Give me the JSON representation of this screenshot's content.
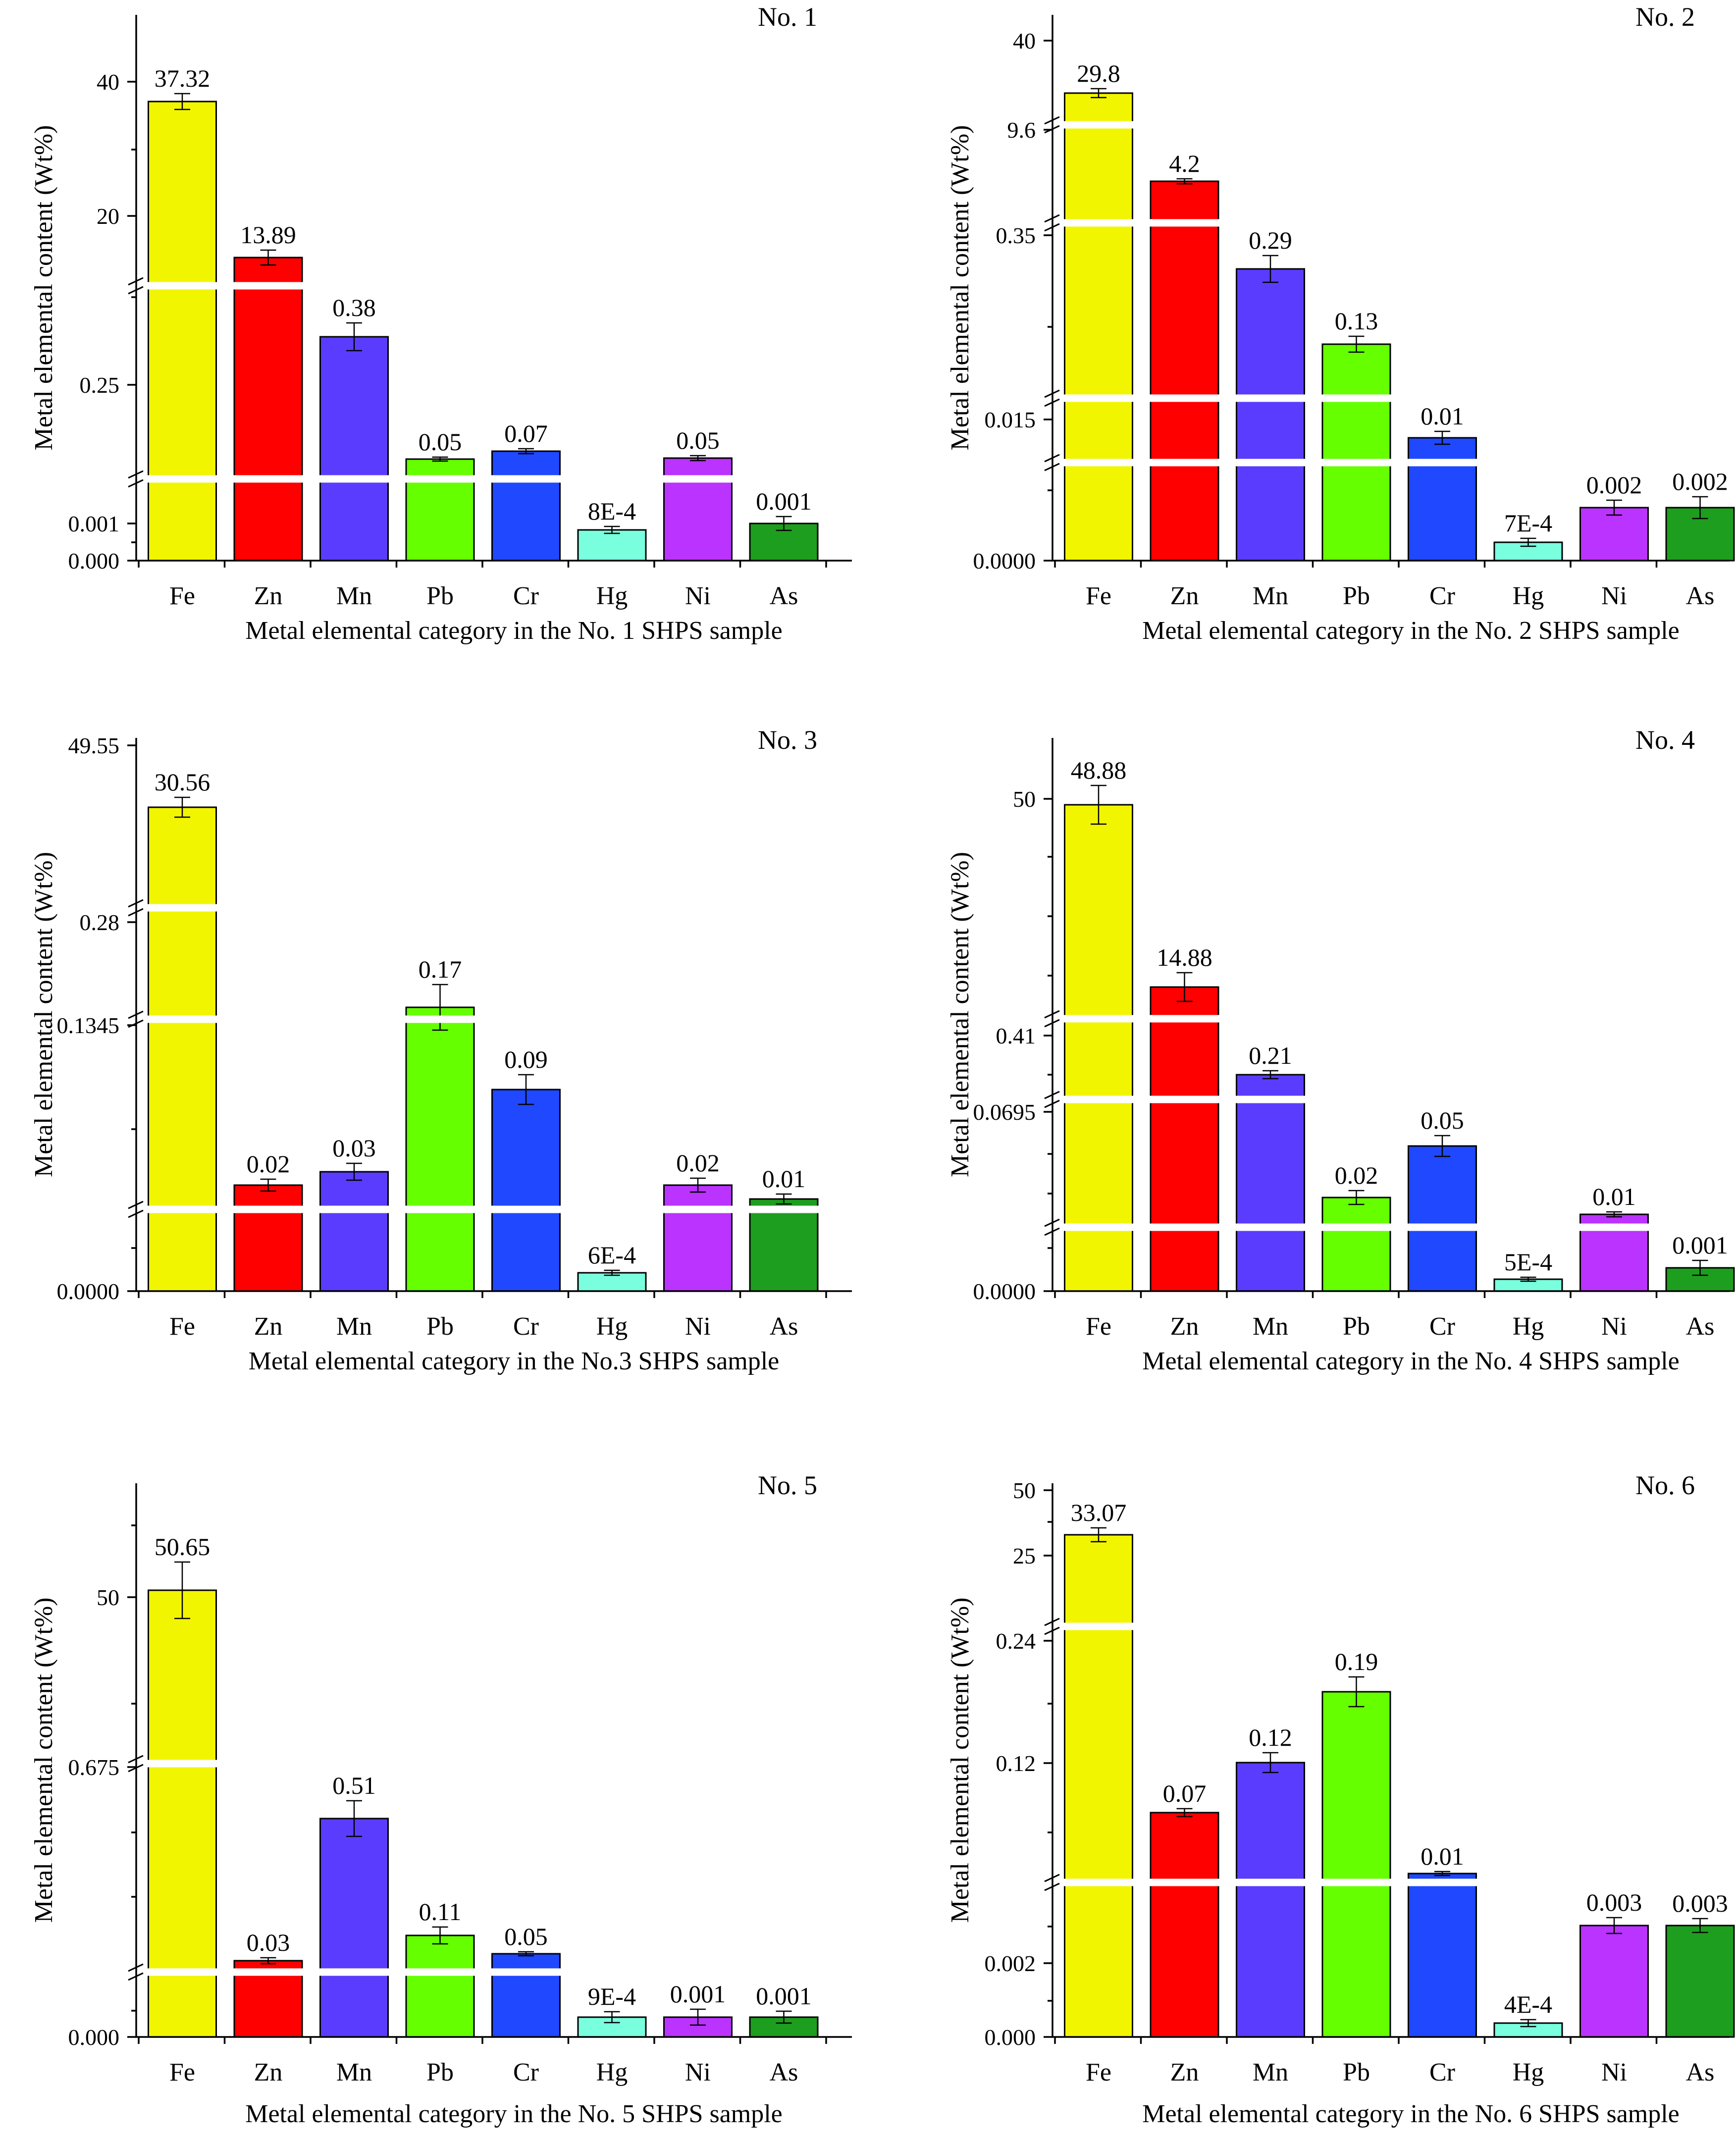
{
  "colors": {
    "Fe": "#f2f500",
    "Zn": "#ff0000",
    "Mn": "#5a3cff",
    "Pb": "#66ff00",
    "Cr": "#1f48ff",
    "Hg": "#7affde",
    "Ni": "#bb33ff",
    "As": "#1e9e1e"
  },
  "chart_data": [
    {
      "type": "bar",
      "title": "No. 1",
      "xlabel": "Metal elemental category in the No. 1 SHPS sample",
      "ylabel": "Metal elemental content (Wt%)",
      "categories": [
        "Fe",
        "Zn",
        "Mn",
        "Pb",
        "Cr",
        "Hg",
        "Ni",
        "As"
      ],
      "values": [
        37.32,
        13.89,
        0.38,
        0.05,
        0.07,
        0.0008,
        0.05,
        0.001
      ],
      "value_labels": [
        "37.32",
        "13.89",
        "0.38",
        "0.05",
        "0.07",
        "8E-4",
        "0.05",
        "0.001"
      ],
      "y_ticks": [
        "40",
        "20",
        "0.25",
        "0.001",
        "0.000"
      ],
      "y_breaks": 2
    },
    {
      "type": "bar",
      "title": "No. 2",
      "xlabel": "Metal elemental category in the No. 2 SHPS sample",
      "ylabel": "Metal elemental content (Wt%)",
      "categories": [
        "Fe",
        "Zn",
        "Mn",
        "Pb",
        "Cr",
        "Hg",
        "Ni",
        "As"
      ],
      "values": [
        29.8,
        4.2,
        0.29,
        0.13,
        0.01,
        0.0007,
        0.002,
        0.002
      ],
      "value_labels": [
        "29.8",
        "4.2",
        "0.29",
        "0.13",
        "0.01",
        "7E-4",
        "0.002",
        "0.002"
      ],
      "y_ticks": [
        "40",
        "9.6",
        "0.35",
        "0.015",
        "0.0000"
      ],
      "y_breaks": 4
    },
    {
      "type": "bar",
      "title": "No. 3",
      "xlabel": "Metal elemental category in the No.3 SHPS sample",
      "ylabel": "Metal elemental content (Wt%)",
      "categories": [
        "Fe",
        "Zn",
        "Mn",
        "Pb",
        "Cr",
        "Hg",
        "Ni",
        "As"
      ],
      "values": [
        30.56,
        0.02,
        0.03,
        0.17,
        0.09,
        0.0006,
        0.02,
        0.01
      ],
      "value_labels": [
        "30.56",
        "0.02",
        "0.03",
        "0.17",
        "0.09",
        "6E-4",
        "0.02",
        "0.01"
      ],
      "y_ticks": [
        "49.55",
        "0.28",
        "0.1345",
        "0.0000"
      ],
      "y_breaks": 3
    },
    {
      "type": "bar",
      "title": "No. 4",
      "xlabel": "Metal elemental category in the No. 4 SHPS sample",
      "ylabel": "Metal elemental content (Wt%)",
      "categories": [
        "Fe",
        "Zn",
        "Mn",
        "Pb",
        "Cr",
        "Hg",
        "Ni",
        "As"
      ],
      "values": [
        48.88,
        14.88,
        0.21,
        0.02,
        0.05,
        0.0005,
        0.01,
        0.001
      ],
      "value_labels": [
        "48.88",
        "14.88",
        "0.21",
        "0.02",
        "0.05",
        "5E-4",
        "0.01",
        "0.001"
      ],
      "y_ticks": [
        "50",
        "0.41",
        "0.0695",
        "0.0000"
      ],
      "y_breaks": 3
    },
    {
      "type": "bar",
      "title": "No. 5",
      "xlabel": "Metal elemental category in the No. 5 SHPS sample",
      "ylabel": "Metal elemental content (Wt%)",
      "categories": [
        "Fe",
        "Zn",
        "Mn",
        "Pb",
        "Cr",
        "Hg",
        "Ni",
        "As"
      ],
      "values": [
        50.65,
        0.03,
        0.51,
        0.11,
        0.05,
        0.0009,
        0.001,
        0.001
      ],
      "value_labels": [
        "50.65",
        "0.03",
        "0.51",
        "0.11",
        "0.05",
        "9E-4",
        "0.001",
        "0.001"
      ],
      "y_ticks": [
        "50",
        "0.675",
        "0.000"
      ],
      "y_breaks": 2
    },
    {
      "type": "bar",
      "title": "No. 6",
      "xlabel": "Metal elemental category in the No. 6 SHPS sample",
      "ylabel": "Metal elemental content (Wt%)",
      "categories": [
        "Fe",
        "Zn",
        "Mn",
        "Pb",
        "Cr",
        "Hg",
        "Ni",
        "As"
      ],
      "values": [
        33.07,
        0.07,
        0.12,
        0.19,
        0.01,
        0.0004,
        0.003,
        0.003
      ],
      "value_labels": [
        "33.07",
        "0.07",
        "0.12",
        "0.19",
        "0.01",
        "4E-4",
        "0.003",
        "0.003"
      ],
      "y_ticks": [
        "50",
        "25",
        "0.24",
        "0.12",
        "0.002",
        "0.000"
      ],
      "y_breaks": 2
    }
  ]
}
